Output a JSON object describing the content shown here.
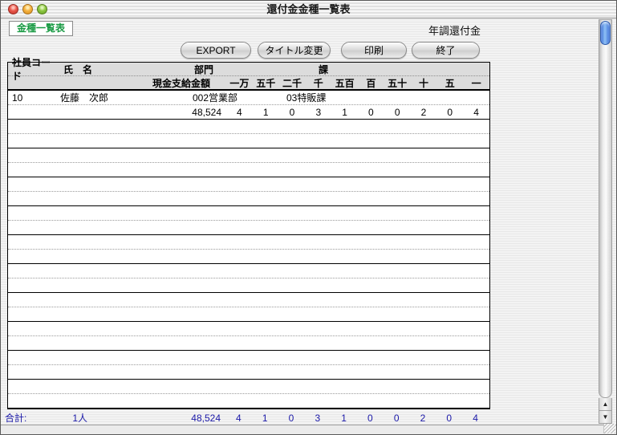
{
  "window": {
    "title": "還付金金種一覧表",
    "subtitle": "年調還付金",
    "view_label": "金種一覧表"
  },
  "toolbar": {
    "buttons": [
      {
        "label": "EXPORT"
      },
      {
        "label": "タイトル変更"
      },
      {
        "label": "印刷"
      },
      {
        "label": "終了"
      }
    ]
  },
  "table": {
    "header_row1": {
      "employee_code": "社員コード",
      "name": "氏　名",
      "department": "部門",
      "section": "課"
    },
    "header_row2": {
      "cash_amount": "現金支給金額",
      "denominations": [
        "一万",
        "五千",
        "二千",
        "千",
        "五百",
        "百",
        "五十",
        "十",
        "五",
        "一"
      ]
    },
    "rows": [
      {
        "employee_code": "10",
        "name": "佐藤　次郎",
        "department": "002営業部",
        "section": "03特販課",
        "cash_amount": "48,524",
        "denomination_counts": [
          "4",
          "1",
          "0",
          "3",
          "1",
          "0",
          "0",
          "2",
          "0",
          "4"
        ]
      }
    ],
    "empty_row_count": 10
  },
  "totals": {
    "label": "合計:",
    "people_count": "1人",
    "cash_amount": "48,524",
    "denomination_counts": [
      "4",
      "1",
      "0",
      "3",
      "1",
      "0",
      "0",
      "2",
      "0",
      "4"
    ]
  },
  "icons": {
    "scroll_up": "▲",
    "scroll_down": "▼"
  },
  "colors": {
    "view_label_green": "#189a43",
    "totals_blue": "#1a18a8",
    "scroll_thumb_blue": "#3b6fd6",
    "header_gray": "#dcdcdc"
  }
}
